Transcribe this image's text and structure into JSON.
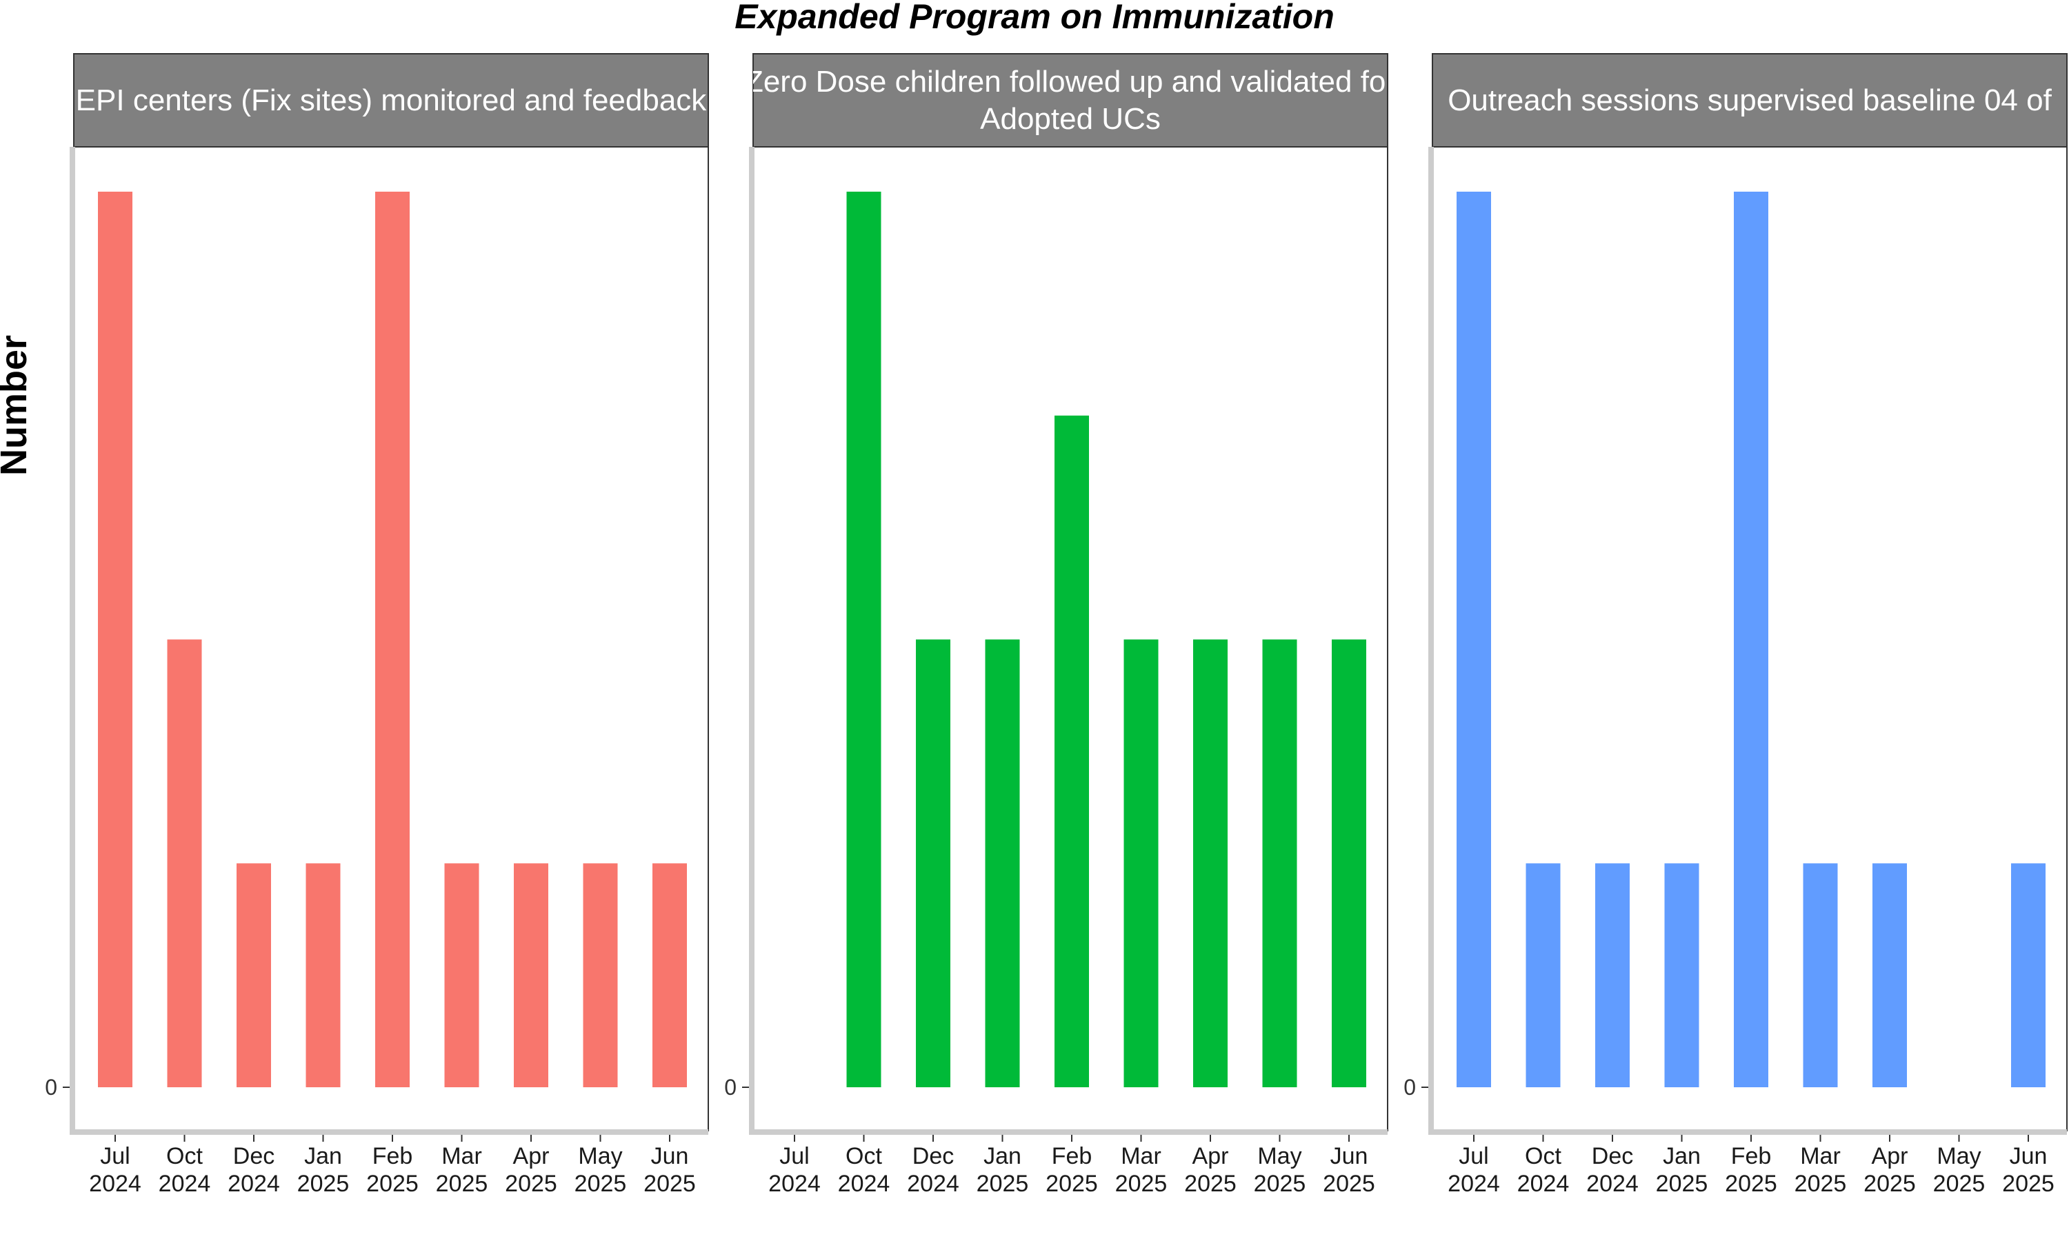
{
  "chart_data": {
    "title": "Expanded Program on Immunization",
    "ylabel": "Number",
    "xlabel": "",
    "type": "bar",
    "categories": [
      {
        "month": "Jul",
        "year": "2024"
      },
      {
        "month": "Oct",
        "year": "2024"
      },
      {
        "month": "Dec",
        "year": "2024"
      },
      {
        "month": "Jan",
        "year": "2025"
      },
      {
        "month": "Feb",
        "year": "2025"
      },
      {
        "month": "Mar",
        "year": "2025"
      },
      {
        "month": "Apr",
        "year": "2025"
      },
      {
        "month": "May",
        "year": "2025"
      },
      {
        "month": "Jun",
        "year": "2025"
      }
    ],
    "y_tick_labels": [
      "0"
    ],
    "ylim": [
      0,
      4
    ],
    "panels": [
      {
        "strip_lines": [
          "EPI centers (Fix sites) monitored and feedback"
        ],
        "color": "#F8766D",
        "values": [
          4,
          2,
          1,
          1,
          4,
          1,
          1,
          1,
          1
        ]
      },
      {
        "strip_lines": [
          "Zero Dose children followed up and validated for",
          "Adopted UCs"
        ],
        "color": "#00BA38",
        "values": [
          null,
          4,
          2,
          2,
          3,
          2,
          2,
          2,
          2
        ]
      },
      {
        "strip_lines": [
          "Outreach sessions supervised baseline 04 of"
        ],
        "color": "#619CFF",
        "values": [
          4,
          1,
          1,
          1,
          4,
          1,
          1,
          null,
          1
        ]
      }
    ]
  }
}
